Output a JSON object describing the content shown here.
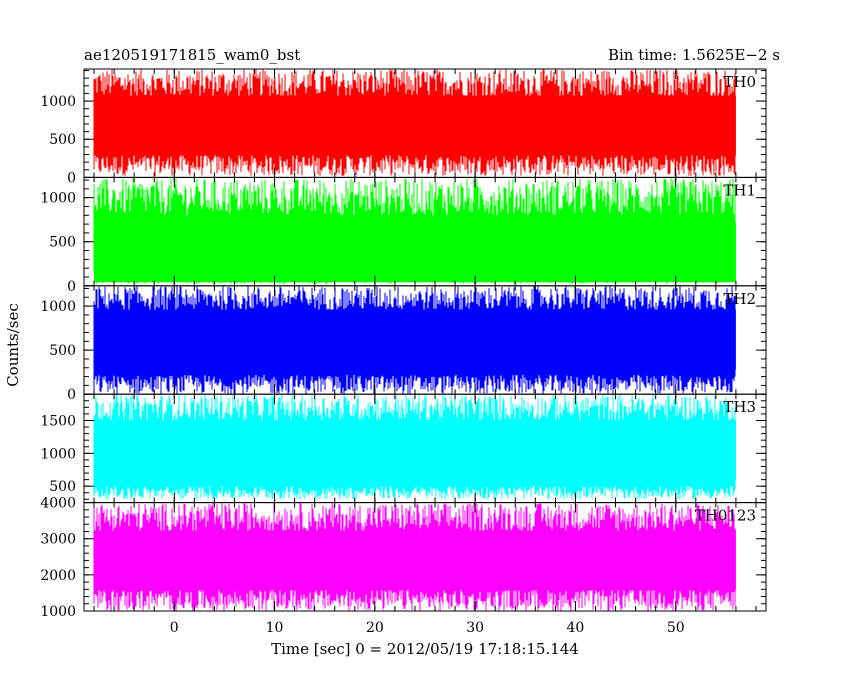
{
  "header": {
    "left_title": "ae120519171815_wam0_bst",
    "right_title": "Bin time: 1.5625E−2 s"
  },
  "chart_data": {
    "type": "line",
    "title": "ae120519171815_wam0_bst",
    "subtitle": "Bin time: 1.5625E−2 s",
    "xlabel": "Time [sec] 0 = 2012/05/19 17:18:15.144",
    "ylabel": "Counts/sec",
    "xlim": [
      -9,
      59
    ],
    "x_ticks": [
      0,
      10,
      20,
      30,
      40,
      50
    ],
    "x_tick_labels": [
      "0",
      "10",
      "20",
      "30",
      "40",
      "50"
    ],
    "data_x_range": [
      -8,
      56
    ],
    "bin_time": 0.015625,
    "grid": false,
    "series": [
      {
        "name": "TH0",
        "color": "#ff0000",
        "ylim": [
          0,
          1420
        ],
        "y_ticks": [
          0,
          500,
          1000
        ],
        "y_tick_labels": [
          "0",
          "500",
          "1000"
        ],
        "mean": 680,
        "low_range": [
          20,
          300
        ],
        "high_range": [
          1050,
          1420
        ]
      },
      {
        "name": "TH1",
        "color": "#00ff00",
        "ylim": [
          0,
          1230
        ],
        "y_ticks": [
          0,
          500,
          1000
        ],
        "y_tick_labels": [
          "0",
          "500",
          "1000"
        ],
        "mean": 380,
        "low_range": [
          20,
          150
        ],
        "high_range": [
          800,
          1220
        ]
      },
      {
        "name": "TH2",
        "color": "#0000ff",
        "ylim": [
          0,
          1230
        ],
        "y_ticks": [
          0,
          500,
          1000
        ],
        "y_tick_labels": [
          "0",
          "500",
          "1000"
        ],
        "mean": 620,
        "low_range": [
          0,
          220
        ],
        "high_range": [
          950,
          1230
        ]
      },
      {
        "name": "TH3",
        "color": "#00ffff",
        "ylim": [
          250,
          1900
        ],
        "y_ticks": [
          500,
          1000,
          1500
        ],
        "y_tick_labels": [
          "500",
          "1000",
          "1500"
        ],
        "mean": 1050,
        "low_range": [
          300,
          500
        ],
        "high_range": [
          1500,
          1900
        ]
      },
      {
        "name": "TH0123",
        "color": "#ff00ff",
        "ylim": [
          1000,
          4000
        ],
        "y_ticks": [
          1000,
          2000,
          3000,
          4000
        ],
        "y_tick_labels": [
          "1000",
          "2000",
          "3000",
          "4000"
        ],
        "mean": 2400,
        "low_range": [
          1000,
          1600
        ],
        "high_range": [
          3200,
          4000
        ]
      }
    ]
  }
}
